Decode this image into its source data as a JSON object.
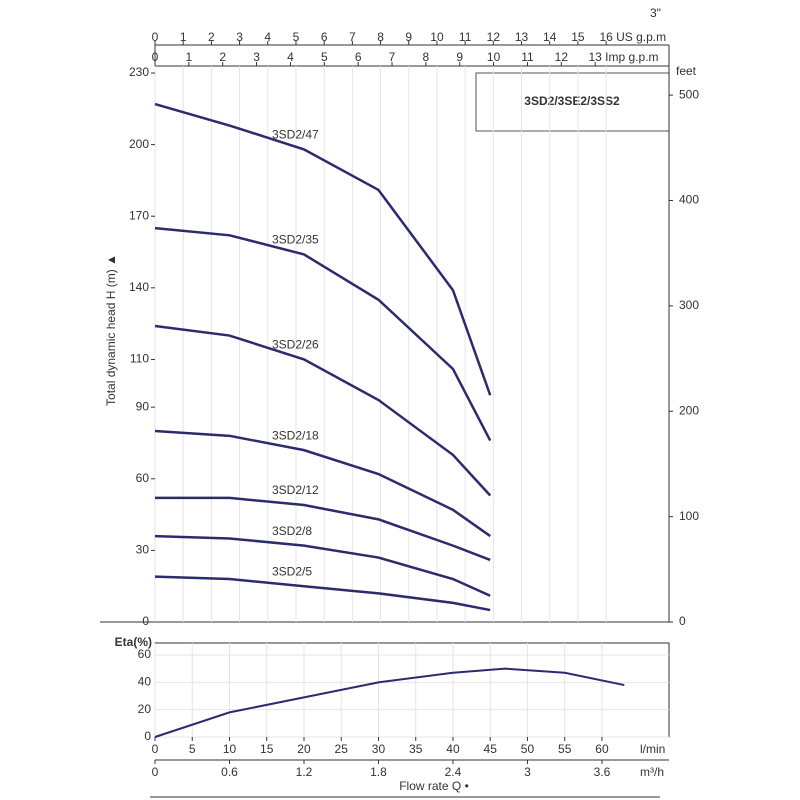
{
  "chart_data": {
    "type": "line",
    "title": "3SD2/3SE2/3SS2",
    "corner_label": "3\"",
    "y_label": "Total dynamic head H (m) ▲",
    "x_label": "Flow rate Q •",
    "x_unit": "l/min",
    "color": "#2b2b6e",
    "grid": true,
    "xlim": [
      0,
      69
    ],
    "xticks": [
      0,
      5,
      10,
      15,
      20,
      25,
      30,
      35,
      40,
      45,
      50,
      55,
      60
    ],
    "ylim": [
      0,
      230
    ],
    "yticks": [
      0,
      30,
      60,
      90,
      110,
      140,
      170,
      200,
      230
    ],
    "y2_label": "feet",
    "y2lim": [
      0,
      521
    ],
    "y2ticks": [
      0,
      100,
      200,
      300,
      400,
      500
    ],
    "x": [
      0,
      10,
      20,
      30,
      40,
      45
    ],
    "series": [
      {
        "name": "3SD2/47",
        "values": [
          217,
          208,
          198,
          181,
          139,
          95
        ]
      },
      {
        "name": "3SD2/35",
        "values": [
          165,
          162,
          154,
          135,
          106,
          76
        ]
      },
      {
        "name": "3SD2/26",
        "values": [
          124,
          120,
          110,
          93,
          70,
          53
        ]
      },
      {
        "name": "3SD2/18",
        "values": [
          80,
          78,
          72,
          62,
          47,
          36
        ]
      },
      {
        "name": "3SD2/12",
        "values": [
          52,
          52,
          49,
          43,
          32,
          26
        ]
      },
      {
        "name": "3SD2/8",
        "values": [
          36,
          35,
          32,
          27,
          18,
          11
        ]
      },
      {
        "name": "3SD2/5",
        "values": [
          19,
          18,
          15,
          12,
          8,
          5
        ]
      }
    ],
    "top_axes": [
      {
        "label": "US g.p.m",
        "lim": [
          0,
          18.23
        ],
        "ticks": [
          0,
          1,
          2,
          3,
          4,
          5,
          6,
          7,
          8,
          9,
          10,
          11,
          12,
          13,
          14,
          15,
          16
        ]
      },
      {
        "label": "Imp g.p.m",
        "lim": [
          0,
          15.18
        ],
        "ticks": [
          0,
          1,
          2,
          3,
          4,
          5,
          6,
          7,
          8,
          9,
          10,
          11,
          12,
          13
        ]
      }
    ],
    "m3h_axis": {
      "label": "m³/h",
      "lim": [
        0,
        4.14
      ],
      "ticks": [
        0,
        0.6,
        1.2,
        1.8,
        2.4,
        3,
        3.6
      ]
    },
    "eta": {
      "label": "Eta(%)",
      "x": [
        0,
        10,
        20,
        30,
        40,
        47,
        55,
        63
      ],
      "values": [
        0,
        18,
        29,
        40,
        47,
        50,
        47,
        38
      ],
      "ylim": [
        0,
        60
      ],
      "yticks": [
        0,
        20,
        40,
        60
      ]
    }
  }
}
